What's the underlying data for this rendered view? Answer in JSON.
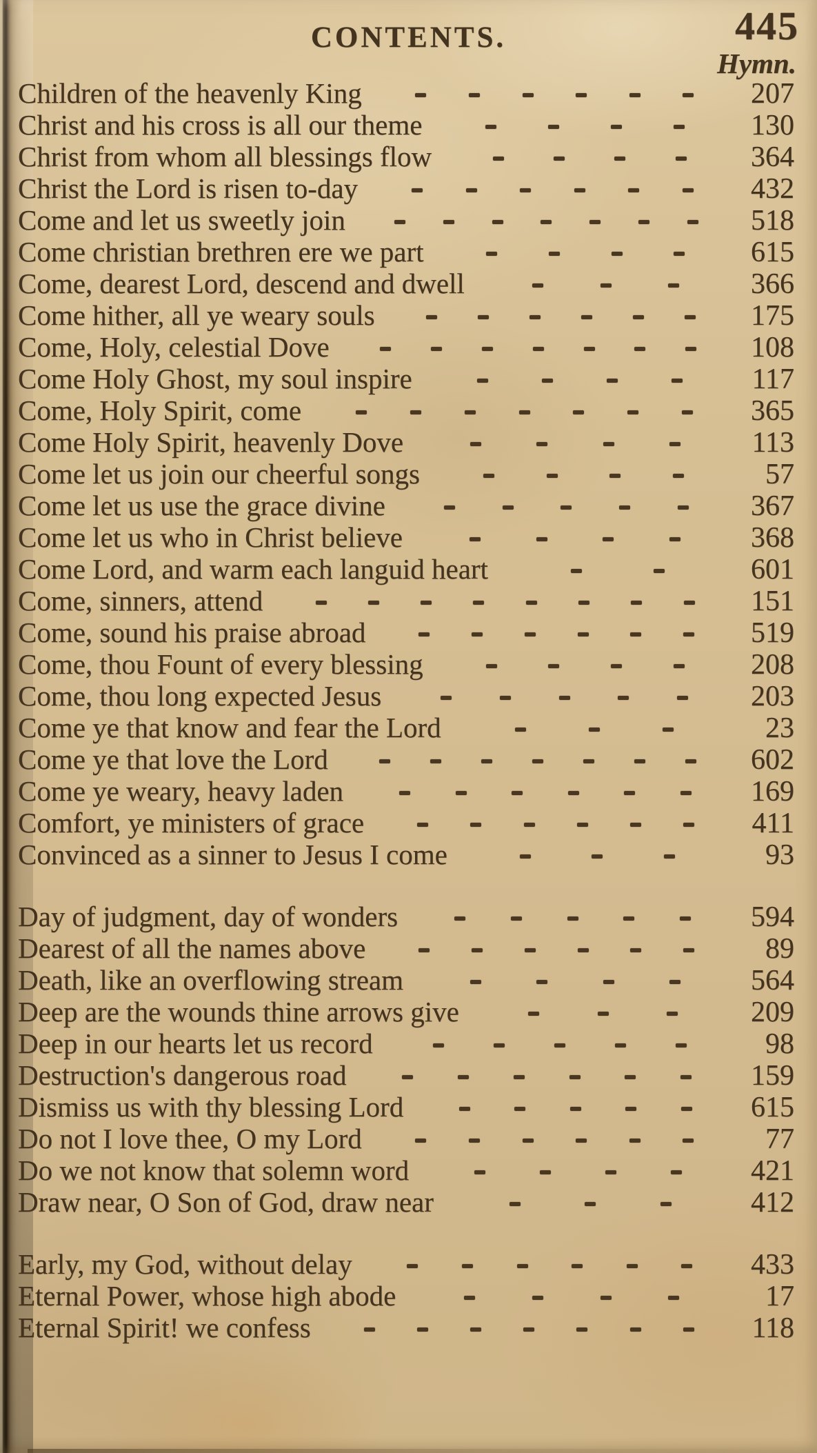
{
  "page": {
    "title": "CONTENTS.",
    "page_number": "445",
    "column_header": "Hymn."
  },
  "colors": {
    "paper": "#d6bd92",
    "ink": "#44331e"
  },
  "index_groups": [
    {
      "entries": [
        {
          "title": "Children of the heavenly King",
          "leader_dashes": 6,
          "hymn": "207"
        },
        {
          "title": "Christ and his cross is all our theme",
          "leader_dashes": 4,
          "hymn": "130"
        },
        {
          "title": "Christ from whom all blessings flow",
          "leader_dashes": 4,
          "hymn": "364"
        },
        {
          "title": "Christ the Lord is risen to-day",
          "leader_dashes": 6,
          "hymn": "432"
        },
        {
          "title": "Come and let us sweetly join",
          "leader_dashes": 7,
          "hymn": "518"
        },
        {
          "title": "Come christian brethren ere we part",
          "leader_dashes": 4,
          "hymn": "615"
        },
        {
          "title": "Come, dearest Lord, descend and dwell",
          "leader_dashes": 3,
          "hymn": "366"
        },
        {
          "title": "Come hither, all ye weary souls",
          "leader_dashes": 6,
          "hymn": "175"
        },
        {
          "title": "Come, Holy, celestial Dove",
          "leader_dashes": 7,
          "hymn": "108"
        },
        {
          "title": "Come Holy Ghost, my soul inspire",
          "leader_dashes": 4,
          "hymn": "117"
        },
        {
          "title": "Come, Holy Spirit, come",
          "leader_dashes": 7,
          "hymn": "365"
        },
        {
          "title": "Come Holy Spirit, heavenly Dove",
          "leader_dashes": 4,
          "hymn": "113"
        },
        {
          "title": "Come let us join our cheerful songs",
          "leader_dashes": 4,
          "hymn": "57"
        },
        {
          "title": "Come let us use the grace divine",
          "leader_dashes": 5,
          "hymn": "367"
        },
        {
          "title": "Come let us who in Christ believe",
          "leader_dashes": 4,
          "hymn": "368"
        },
        {
          "title": "Come Lord, and warm each languid heart",
          "leader_dashes": 2,
          "hymn": "601"
        },
        {
          "title": "Come, sinners, attend",
          "leader_dashes": 8,
          "hymn": "151"
        },
        {
          "title": "Come, sound his praise abroad",
          "leader_dashes": 6,
          "hymn": "519"
        },
        {
          "title": "Come, thou Fount of every blessing",
          "leader_dashes": 4,
          "hymn": "208"
        },
        {
          "title": "Come, thou long expected Jesus",
          "leader_dashes": 5,
          "hymn": "203"
        },
        {
          "title": "Come ye that know and fear the Lord",
          "leader_dashes": 3,
          "hymn": "23"
        },
        {
          "title": "Come ye that love the Lord",
          "leader_dashes": 7,
          "hymn": "602"
        },
        {
          "title": "Come ye weary, heavy laden",
          "leader_dashes": 6,
          "hymn": "169"
        },
        {
          "title": "Comfort, ye ministers of grace",
          "leader_dashes": 6,
          "hymn": "411"
        },
        {
          "title": "Convinced as a sinner to Jesus I come",
          "leader_dashes": 3,
          "hymn": "93"
        }
      ]
    },
    {
      "entries": [
        {
          "title": "Day of judgment, day of wonders",
          "leader_dashes": 5,
          "hymn": "594"
        },
        {
          "title": "Dearest of all the names above",
          "leader_dashes": 6,
          "hymn": "89"
        },
        {
          "title": "Death, like an overflowing stream",
          "leader_dashes": 4,
          "hymn": "564"
        },
        {
          "title": "Deep are the wounds thine arrows give",
          "leader_dashes": 3,
          "hymn": "209"
        },
        {
          "title": "Deep in our hearts let us record",
          "leader_dashes": 5,
          "hymn": "98"
        },
        {
          "title": "Destruction's dangerous road",
          "leader_dashes": 6,
          "hymn": "159"
        },
        {
          "title": "Dismiss us with thy blessing Lord",
          "leader_dashes": 5,
          "hymn": "615"
        },
        {
          "title": "Do not I love thee, O my Lord",
          "leader_dashes": 6,
          "hymn": "77"
        },
        {
          "title": "Do we not know that solemn word",
          "leader_dashes": 4,
          "hymn": "421"
        },
        {
          "title": "Draw near, O Son of God, draw near",
          "leader_dashes": 3,
          "hymn": "412"
        }
      ]
    },
    {
      "entries": [
        {
          "title": "Early, my God, without delay",
          "leader_dashes": 6,
          "hymn": "433"
        },
        {
          "title": "Eternal Power, whose high abode",
          "leader_dashes": 4,
          "hymn": "17"
        },
        {
          "title": "Eternal Spirit! we confess",
          "leader_dashes": 7,
          "hymn": "118"
        }
      ]
    }
  ]
}
